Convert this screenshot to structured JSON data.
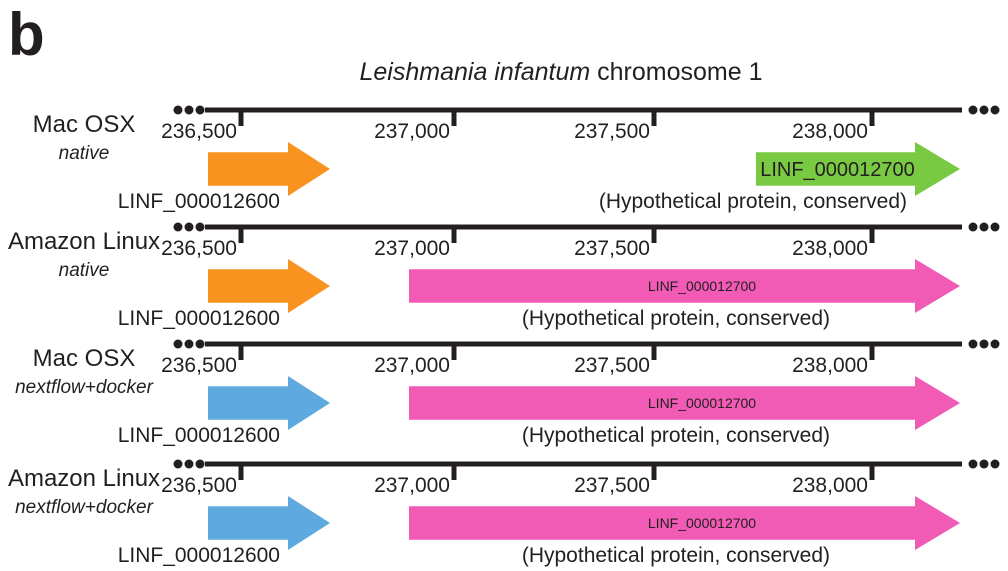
{
  "figure": {
    "panel_letter": "b",
    "title": {
      "organism": "Leishmania infantum",
      "suffix": " chromosome 1"
    },
    "ellipsis": "•••"
  },
  "colors": {
    "axis": "#231f20",
    "orange": "#f7931e",
    "green": "#7ac943",
    "pink": "#f15bb5",
    "blue": "#5da9e0"
  },
  "tracks": [
    {
      "name": "Mac OSX",
      "sub": "native",
      "ticks": [
        "236,500",
        "237,000",
        "237,500",
        "238,000"
      ],
      "gene1": {
        "label": "LINF_000012600",
        "color": "orange"
      },
      "gene2": {
        "label": "LINF_000012700",
        "color": "green",
        "start": 237725
      },
      "description": "(Hypothetical protein, conserved)"
    },
    {
      "name": "Amazon Linux",
      "sub": "native",
      "ticks": [
        "236,500",
        "237,000",
        "237,500",
        "238,000"
      ],
      "gene1": {
        "label": "LINF_000012600",
        "color": "orange"
      },
      "gene2": {
        "label": "LINF_000012700",
        "color": "pink",
        "start": 236900
      },
      "description": "(Hypothetical protein, conserved)"
    },
    {
      "name": "Mac OSX",
      "sub": "nextflow+docker",
      "ticks": [
        "236,500",
        "237,000",
        "237,500",
        "238,000"
      ],
      "gene1": {
        "label": "LINF_000012600",
        "color": "blue"
      },
      "gene2": {
        "label": "LINF_000012700",
        "color": "pink",
        "start": 236900
      },
      "description": "(Hypothetical protein, conserved)"
    },
    {
      "name": "Amazon Linux",
      "sub": "nextflow+docker",
      "ticks": [
        "236,500",
        "237,000",
        "237,500",
        "238,000"
      ],
      "gene1": {
        "label": "LINF_000012600",
        "color": "blue"
      },
      "gene2": {
        "label": "LINF_000012700",
        "color": "pink",
        "start": 236900
      },
      "description": "(Hypothetical protein, conserved)"
    }
  ]
}
